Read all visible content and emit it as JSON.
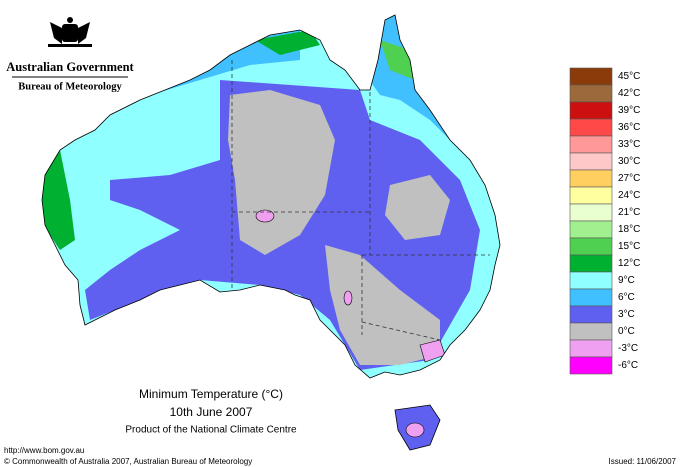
{
  "header": {
    "government": "Australian Government",
    "bureau": "Bureau of Meteorology"
  },
  "map": {
    "title": "Minimum Temperature (°C)",
    "date": "10th June 2007",
    "product": "Product of the National Climate Centre"
  },
  "legend": [
    {
      "label": "45°C",
      "color": "#8b3a0a"
    },
    {
      "label": "42°C",
      "color": "#9c6a3a"
    },
    {
      "label": "39°C",
      "color": "#cc1010"
    },
    {
      "label": "36°C",
      "color": "#ff4848"
    },
    {
      "label": "33°C",
      "color": "#ff9898"
    },
    {
      "label": "30°C",
      "color": "#ffc8c8"
    },
    {
      "label": "27°C",
      "color": "#ffd060"
    },
    {
      "label": "24°C",
      "color": "#ffffa0"
    },
    {
      "label": "21°C",
      "color": "#eaffd0"
    },
    {
      "label": "18°C",
      "color": "#a0f090"
    },
    {
      "label": "15°C",
      "color": "#50d050"
    },
    {
      "label": "12°C",
      "color": "#00b030"
    },
    {
      "label": "9°C",
      "color": "#90ffff"
    },
    {
      "label": "6°C",
      "color": "#40c0ff"
    },
    {
      "label": "3°C",
      "color": "#6060f0"
    },
    {
      "label": "0°C",
      "color": "#c0c0c0"
    },
    {
      "label": "-3°C",
      "color": "#f0a0f0"
    },
    {
      "label": "-6°C",
      "color": "#ff00ff"
    }
  ],
  "footer": {
    "url": "http://www.bom.gov.au",
    "copyright": "© Commonwealth of Australia 2007, Australian Bureau of Meteorology",
    "issued": "Issued: 11/06/2007"
  }
}
